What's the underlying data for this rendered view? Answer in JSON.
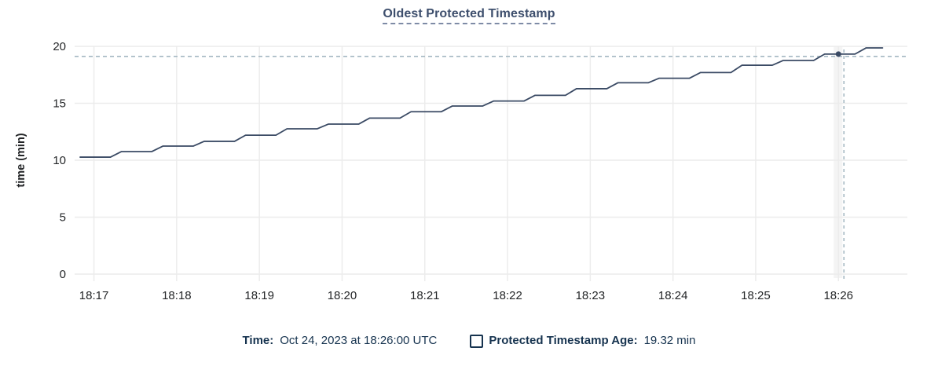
{
  "title": "Oldest Protected Timestamp",
  "legend": {
    "time_label": "Time:",
    "time_value": "Oct 24, 2023 at 18:26:00 UTC",
    "series_label": "Protected Timestamp Age:",
    "series_value": "19.32 min"
  },
  "colors": {
    "title": "#3e4f6d",
    "title_underline": "#7e8ba6",
    "legend_text": "#16334f",
    "axis_text": "#242628",
    "line": "#3a4a64",
    "grid": "#ececec",
    "crosshair": "#a5b8c2",
    "hover_band": "#f4f4f4",
    "background": "#ffffff"
  },
  "chart_data": {
    "type": "line",
    "title": "Oldest Protected Timestamp",
    "xlabel": "",
    "ylabel": "time (min)",
    "x_tick_labels": [
      "18:17",
      "18:18",
      "18:19",
      "18:20",
      "18:21",
      "18:22",
      "18:23",
      "18:24",
      "18:25",
      "18:26"
    ],
    "y_tick_labels": [
      0,
      5,
      10,
      15,
      20
    ],
    "ylim": [
      0,
      20
    ],
    "xlim": [
      "18:16:46",
      "18:26:50"
    ],
    "grid": true,
    "legend_position": "bottom",
    "hover_point": {
      "time": "18:26:00",
      "value": 19.32
    },
    "series": [
      {
        "name": "Protected Timestamp Age",
        "unit": "min",
        "points": [
          [
            "18:16:50",
            10.27
          ],
          [
            "18:17:12",
            10.27
          ],
          [
            "18:17:20",
            10.76
          ],
          [
            "18:17:42",
            10.76
          ],
          [
            "18:17:50",
            11.24
          ],
          [
            "18:18:12",
            11.24
          ],
          [
            "18:18:20",
            11.66
          ],
          [
            "18:18:42",
            11.66
          ],
          [
            "18:18:50",
            12.2
          ],
          [
            "18:19:12",
            12.2
          ],
          [
            "18:19:20",
            12.76
          ],
          [
            "18:19:42",
            12.76
          ],
          [
            "18:19:50",
            13.17
          ],
          [
            "18:20:12",
            13.17
          ],
          [
            "18:20:20",
            13.7
          ],
          [
            "18:20:42",
            13.7
          ],
          [
            "18:20:50",
            14.26
          ],
          [
            "18:21:12",
            14.26
          ],
          [
            "18:21:20",
            14.76
          ],
          [
            "18:21:42",
            14.76
          ],
          [
            "18:21:50",
            15.2
          ],
          [
            "18:22:12",
            15.2
          ],
          [
            "18:22:20",
            15.7
          ],
          [
            "18:22:42",
            15.7
          ],
          [
            "18:22:50",
            16.28
          ],
          [
            "18:23:12",
            16.28
          ],
          [
            "18:23:20",
            16.8
          ],
          [
            "18:23:42",
            16.8
          ],
          [
            "18:23:50",
            17.2
          ],
          [
            "18:24:12",
            17.2
          ],
          [
            "18:24:20",
            17.7
          ],
          [
            "18:24:42",
            17.7
          ],
          [
            "18:24:50",
            18.34
          ],
          [
            "18:25:12",
            18.34
          ],
          [
            "18:25:20",
            18.76
          ],
          [
            "18:25:42",
            18.76
          ],
          [
            "18:25:50",
            19.32
          ],
          [
            "18:26:12",
            19.32
          ],
          [
            "18:26:20",
            19.86
          ],
          [
            "18:26:32",
            19.86
          ]
        ]
      }
    ]
  }
}
